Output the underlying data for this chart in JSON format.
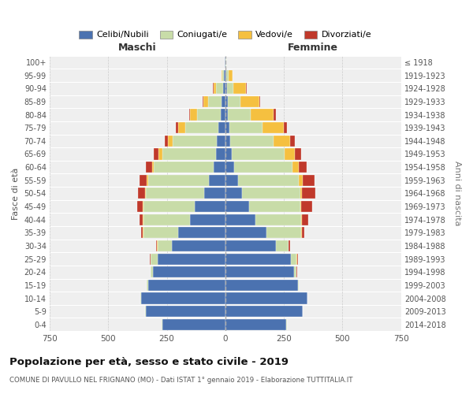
{
  "age_groups": [
    "0-4",
    "5-9",
    "10-14",
    "15-19",
    "20-24",
    "25-29",
    "30-34",
    "35-39",
    "40-44",
    "45-49",
    "50-54",
    "55-59",
    "60-64",
    "65-69",
    "70-74",
    "75-79",
    "80-84",
    "85-89",
    "90-94",
    "95-99",
    "100+"
  ],
  "birth_years": [
    "2014-2018",
    "2009-2013",
    "2004-2008",
    "1999-2003",
    "1994-1998",
    "1989-1993",
    "1984-1988",
    "1979-1983",
    "1974-1978",
    "1969-1973",
    "1964-1968",
    "1959-1963",
    "1954-1958",
    "1949-1953",
    "1944-1948",
    "1939-1943",
    "1934-1938",
    "1929-1933",
    "1924-1928",
    "1919-1923",
    "≤ 1918"
  ],
  "colors": {
    "celibe": "#4b72b0",
    "coniugato": "#c8dca8",
    "vedovo": "#f5c040",
    "divorziato": "#c0392b"
  },
  "maschi": {
    "celibe": [
      270,
      340,
      360,
      330,
      310,
      290,
      230,
      200,
      150,
      130,
      90,
      70,
      50,
      40,
      35,
      30,
      20,
      15,
      10,
      5,
      2
    ],
    "coniugato": [
      2,
      2,
      2,
      5,
      10,
      30,
      60,
      150,
      200,
      220,
      250,
      260,
      255,
      230,
      190,
      140,
      100,
      60,
      30,
      8,
      1
    ],
    "vedovo": [
      0,
      0,
      0,
      0,
      0,
      1,
      1,
      2,
      2,
      2,
      3,
      5,
      8,
      15,
      20,
      30,
      30,
      18,
      10,
      3,
      0
    ],
    "divorziato": [
      0,
      0,
      0,
      0,
      1,
      3,
      5,
      8,
      15,
      25,
      30,
      30,
      25,
      20,
      15,
      10,
      5,
      3,
      2,
      0,
      0
    ]
  },
  "femmine": {
    "nubile": [
      260,
      330,
      350,
      310,
      295,
      280,
      215,
      175,
      130,
      100,
      70,
      55,
      38,
      28,
      22,
      18,
      12,
      10,
      8,
      5,
      2
    ],
    "coniugata": [
      2,
      2,
      2,
      5,
      10,
      25,
      55,
      150,
      195,
      220,
      250,
      260,
      250,
      225,
      185,
      140,
      95,
      55,
      25,
      8,
      1
    ],
    "vedova": [
      0,
      0,
      0,
      0,
      0,
      1,
      1,
      2,
      3,
      5,
      8,
      15,
      25,
      45,
      70,
      90,
      100,
      80,
      55,
      18,
      2
    ],
    "divorziata": [
      0,
      0,
      0,
      0,
      1,
      3,
      5,
      10,
      25,
      45,
      55,
      50,
      35,
      25,
      20,
      15,
      8,
      5,
      3,
      0,
      0
    ]
  },
  "title": "Popolazione per età, sesso e stato civile - 2019",
  "subtitle": "COMUNE DI PAVULLO NEL FRIGNANO (MO) - Dati ISTAT 1° gennaio 2019 - Elaborazione TUTTITALIA.IT",
  "xlabel_left": "Maschi",
  "xlabel_right": "Femmine",
  "ylabel_left": "Fasce di età",
  "ylabel_right": "Anni di nascita",
  "legend_labels": [
    "Celibi/Nubili",
    "Coniugati/e",
    "Vedovi/e",
    "Divorziati/e"
  ],
  "xlim": 750,
  "bg_color": "#ffffff",
  "plot_bg": "#efefef",
  "grid_color": "#ffffff"
}
